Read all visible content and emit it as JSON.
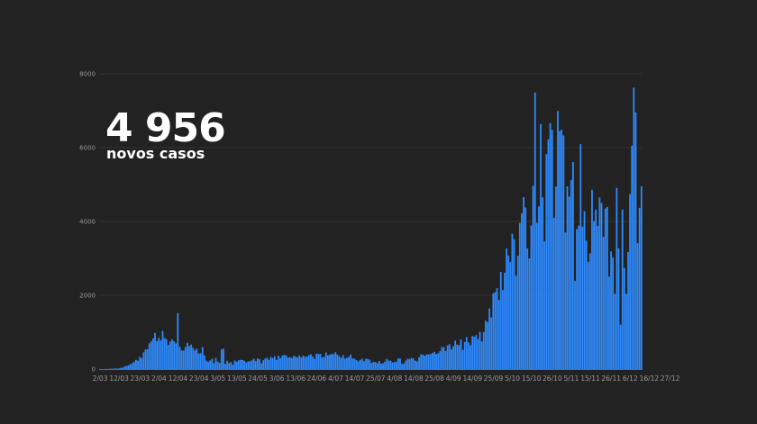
{
  "headline": {
    "value": "4 956",
    "caption": "novos casos"
  },
  "colors": {
    "background": "#222223",
    "bar": "#2f8cff",
    "grid": "#333335",
    "axis": "#6a6a6a"
  },
  "chart_data": {
    "type": "bar",
    "title": "",
    "xlabel": "",
    "ylabel": "",
    "ylim": [
      0,
      8000
    ],
    "yticks": [
      0,
      2000,
      4000,
      6000,
      8000
    ],
    "grid": "horizontal",
    "x_tick_labels": [
      "2/03",
      "12/03",
      "23/03",
      "2/04",
      "12/04",
      "23/04",
      "3/05",
      "13/05",
      "24/05",
      "3/06",
      "13/06",
      "24/06",
      "4/07",
      "14/07",
      "25/07",
      "4/08",
      "14/08",
      "25/08",
      "4/09",
      "14/09",
      "25/09",
      "5/10",
      "15/10",
      "26/10",
      "5/11",
      "15/11",
      "26/11",
      "6/12",
      "16/12",
      "27/12"
    ],
    "x_tick_positions": [
      0,
      10,
      21,
      31,
      41,
      52,
      62,
      72,
      83,
      93,
      103,
      114,
      124,
      134,
      145,
      155,
      165,
      176,
      186,
      196,
      207,
      217,
      227,
      238,
      248,
      258,
      269,
      279,
      289,
      300
    ],
    "series": [
      {
        "values": [
          2,
          0,
          0,
          4,
          2,
          8,
          9,
          10,
          19,
          10,
          18,
          31,
          40,
          68,
          86,
          103,
          136,
          157,
          199,
          250,
          226,
          332,
          299,
          452,
          531,
          538,
          697,
          750,
          834,
          977,
          760,
          849,
          775,
          1035,
          842,
          811,
          654,
          746,
          802,
          754,
          698,
          1516,
          602,
          506,
          499,
          598,
          711,
          621,
          663,
          580,
          507,
          557,
          421,
          430,
          595,
          371,
          229,
          193,
          231,
          283,
          163,
          306,
          205,
          173,
          537,
          553,
          136,
          225,
          166,
          183,
          114,
          232,
          200,
          240,
          250,
          244,
          226,
          181,
          211,
          209,
          237,
          284,
          221,
          288,
          271,
          157,
          241,
          288,
          304,
          253,
          327,
          300,
          350,
          246,
          363,
          294,
          364,
          382,
          374,
          310,
          325,
          300,
          354,
          344,
          312,
          370,
          318,
          369,
          330,
          340,
          380,
          404,
          342,
          280,
          419,
          409,
          412,
          315,
          330,
          448,
          375,
          389,
          417,
          402,
          456,
          393,
          349,
          306,
          377,
          282,
          309,
          330,
          392,
          287,
          280,
          242,
          208,
          251,
          280,
          213,
          279,
          276,
          254,
          166,
          200,
          191,
          161,
          217,
          150,
          154,
          202,
          277,
          231,
          230,
          178,
          190,
          200,
          288,
          287,
          140,
          153,
          230,
          279,
          274,
          304,
          284,
          227,
          206,
          320,
          401,
          392,
          360,
          395,
          400,
          405,
          435,
          471,
          410,
          428,
          488,
          598,
          592,
          491,
          641,
          675,
          538,
          624,
          772,
          663,
          648,
          805,
          520,
          737,
          863,
          722,
          649,
          897,
          878,
          924,
          812,
          1009,
          749,
          1005,
          1310,
          1275,
          1646,
          1400,
          2050,
          2090,
          2192,
          1877,
          2635,
          2142,
          2610,
          3270,
          3079,
          2900,
          3669,
          3520,
          2527,
          3070,
          3960,
          4224,
          4658,
          4380,
          3270,
          3001,
          3890,
          4966,
          7497,
          3963,
          4407,
          6640,
          4655,
          3460,
          5826,
          6224,
          6665,
          6480,
          4096,
          4946,
          6994,
          6452,
          6487,
          6331,
          3700,
          4950,
          4670,
          5120,
          5610,
          2390,
          3790,
          3890,
          6093,
          3860,
          4280,
          3480,
          2910,
          3140,
          4860,
          4010,
          4320,
          3880,
          4650,
          4500,
          3580,
          4350,
          4390,
          2510,
          3190,
          3020,
          2040,
          4910,
          3270,
          1204,
          4320,
          2740,
          2040,
          3170,
          4740,
          6054,
          7627,
          6951,
          3410,
          4370,
          4956
        ]
      }
    ]
  }
}
